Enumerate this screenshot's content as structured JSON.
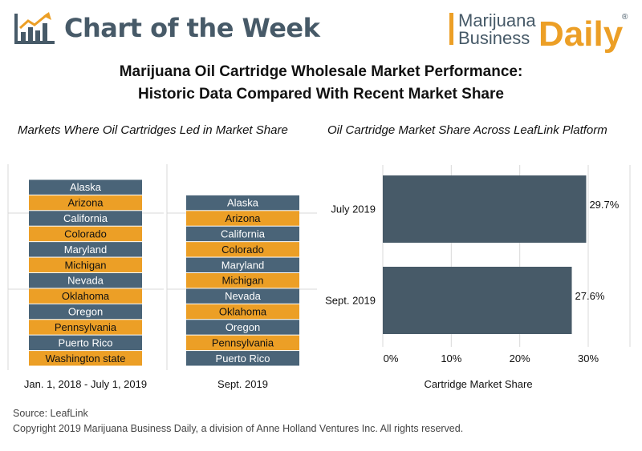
{
  "header": {
    "title": "Chart of the Week",
    "brand_line1": "Marijuana",
    "brand_line2": "Business",
    "brand_daily": "Daily",
    "brand_reg": "®"
  },
  "title_line1": "Marijuana Oil Cartridge Wholesale Market Performance:",
  "title_line2": "Historic Data Compared With Recent Market Share",
  "colors": {
    "slate": "#4a6478",
    "orange": "#ec9f26",
    "dark": "#475a68",
    "gridline": "#d9d9d9",
    "brand_daily": "#ec9f26"
  },
  "chart_data": [
    {
      "type": "table",
      "subtitle": "Markets Where Oil Cartridges Led in Market Share",
      "panels": [
        {
          "label": "Jan. 1, 2018 - July 1, 2019",
          "items": [
            "Alaska",
            "Arizona",
            "California",
            "Colorado",
            "Maryland",
            "Michigan",
            "Nevada",
            "Oklahoma",
            "Oregon",
            "Pennsylvania",
            "Puerto Rico",
            "Washington state"
          ]
        },
        {
          "label": "Sept. 2019",
          "items": [
            "Alaska",
            "Arizona",
            "California",
            "Colorado",
            "Maryland",
            "Michigan",
            "Nevada",
            "Oklahoma",
            "Oregon",
            "Pennsylvania",
            "Puerto Rico"
          ]
        }
      ]
    },
    {
      "type": "bar",
      "orientation": "horizontal",
      "subtitle": "Oil Cartridge Market Share Across LeafLink Platform",
      "categories": [
        "July 2019",
        "Sept. 2019"
      ],
      "values": [
        29.7,
        27.6
      ],
      "value_labels": [
        "29.7%",
        "27.6%"
      ],
      "xlabel": "Cartridge Market Share",
      "xlim": [
        0,
        30
      ],
      "xticks": [
        0,
        10,
        20,
        30
      ],
      "xtick_labels": [
        "0%",
        "10%",
        "20%",
        "30%"
      ],
      "grid": true
    }
  ],
  "footer": {
    "source": "Source: LeafLink",
    "copyright": "Copyright 2019 Marijuana Business Daily, a division of Anne Holland Ventures Inc. All rights reserved."
  }
}
